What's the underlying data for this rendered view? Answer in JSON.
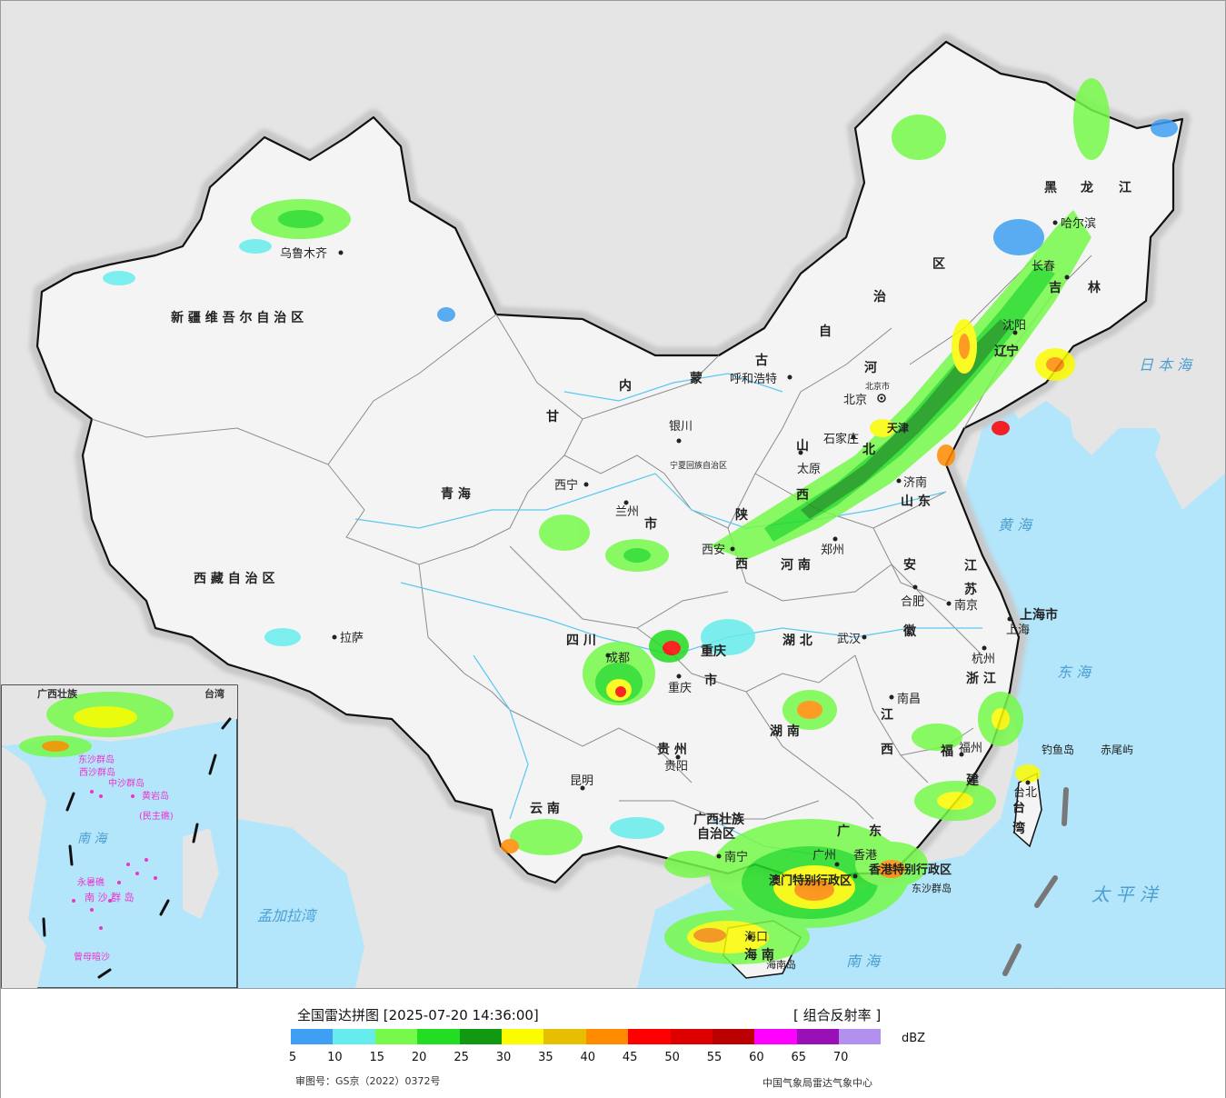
{
  "title": "全国雷达拼图 [2025-07-20 14:36:00]",
  "product": "[ 组合反射率 ]",
  "unit": "dBZ",
  "approval_no": "审图号：GS京（2022）0372号",
  "organization": "中国气象局雷达气象中心",
  "colors": {
    "ocean": "#b3e5fb",
    "foreign_land": "#e5e5e5",
    "china_land": "#f4f4f4",
    "halo": "#c8c8c8",
    "border": "#111111"
  },
  "scale": [
    {
      "value": "5",
      "color": "#3f9ff2"
    },
    {
      "value": "10",
      "color": "#66ecec"
    },
    {
      "value": "15",
      "color": "#76f94a"
    },
    {
      "value": "20",
      "color": "#22dd22"
    },
    {
      "value": "25",
      "color": "#119911"
    },
    {
      "value": "30",
      "color": "#fcfc00"
    },
    {
      "value": "35",
      "color": "#e6c000"
    },
    {
      "value": "40",
      "color": "#ff8c00"
    },
    {
      "value": "45",
      "color": "#ff0000"
    },
    {
      "value": "50",
      "color": "#dd0000"
    },
    {
      "value": "55",
      "color": "#bb0000"
    },
    {
      "value": "60",
      "color": "#ff00ff"
    },
    {
      "value": "65",
      "color": "#9a0fb6"
    },
    {
      "value": "70",
      "color": "#b290ee"
    }
  ],
  "provinces": [
    {
      "name": "新 疆 维 吾 尔 自 治 区"
    },
    {
      "name": "西 藏 自 治 区"
    },
    {
      "name": "青 海"
    },
    {
      "name": "甘"
    },
    {
      "name": "四 川"
    },
    {
      "name": "云 南"
    },
    {
      "name": "贵 州"
    },
    {
      "name": "广西壮族"
    },
    {
      "name": "自治区"
    },
    {
      "name": "湖 南"
    },
    {
      "name": "湖 北"
    },
    {
      "name": "河 南"
    },
    {
      "name": "陕"
    },
    {
      "name": "西"
    },
    {
      "name": "山"
    },
    {
      "name": "西"
    },
    {
      "name": "山 东"
    },
    {
      "name": "河"
    },
    {
      "name": "北"
    },
    {
      "name": "江"
    },
    {
      "name": "西"
    },
    {
      "name": "安"
    },
    {
      "name": "徽"
    },
    {
      "name": "江"
    },
    {
      "name": "苏"
    },
    {
      "name": "浙 江"
    },
    {
      "name": "福"
    },
    {
      "name": "建"
    },
    {
      "name": "广"
    },
    {
      "name": "东"
    },
    {
      "name": "海 南"
    },
    {
      "name": "台"
    },
    {
      "name": "湾"
    },
    {
      "name": "辽"
    },
    {
      "name": "宁"
    },
    {
      "name": "吉"
    },
    {
      "name": "林"
    },
    {
      "name": "黑"
    },
    {
      "name": "龙"
    },
    {
      "name": "江"
    },
    {
      "name": "内"
    },
    {
      "name": "蒙"
    },
    {
      "name": "古"
    },
    {
      "name": "自"
    },
    {
      "name": "治"
    },
    {
      "name": "区"
    },
    {
      "name": "重庆"
    },
    {
      "name": "市"
    },
    {
      "name": "宁夏回族自治区"
    },
    {
      "name": "市"
    },
    {
      "name": "天津"
    }
  ],
  "cities": [
    {
      "name": "乌鲁木齐"
    },
    {
      "name": "拉萨"
    },
    {
      "name": "西宁"
    },
    {
      "name": "兰州"
    },
    {
      "name": "银川"
    },
    {
      "name": "呼和浩特"
    },
    {
      "name": "北京"
    },
    {
      "name": "石家庄"
    },
    {
      "name": "太原"
    },
    {
      "name": "济南"
    },
    {
      "name": "西安"
    },
    {
      "name": "郑州"
    },
    {
      "name": "合肥"
    },
    {
      "name": "南京"
    },
    {
      "name": "上海"
    },
    {
      "name": "杭州"
    },
    {
      "name": "武汉"
    },
    {
      "name": "成都"
    },
    {
      "name": "重庆"
    },
    {
      "name": "贵阳"
    },
    {
      "name": "昆明"
    },
    {
      "name": "南宁"
    },
    {
      "name": "南昌"
    },
    {
      "name": "福州"
    },
    {
      "name": "台北"
    },
    {
      "name": "沈阳"
    },
    {
      "name": "长春"
    },
    {
      "name": "哈尔滨"
    },
    {
      "name": "海口"
    },
    {
      "name": "广州"
    },
    {
      "name": "香港"
    }
  ],
  "special_labels": [
    {
      "name": "北京市"
    },
    {
      "name": "上海市"
    },
    {
      "name": "香港特别行政区"
    },
    {
      "name": "澳门特别行政区"
    },
    {
      "name": "钓鱼岛"
    },
    {
      "name": "赤尾屿"
    },
    {
      "name": "海南岛"
    },
    {
      "name": "东沙群岛"
    }
  ],
  "seas": [
    {
      "name": "日 本 海"
    },
    {
      "name": "黄 海"
    },
    {
      "name": "东 海"
    },
    {
      "name": "太 平 洋"
    },
    {
      "name": "南 海"
    },
    {
      "name": "孟加拉湾"
    }
  ],
  "inset_labels": [
    {
      "name": "南 海"
    },
    {
      "name": "东沙群岛"
    },
    {
      "name": "西沙群岛"
    },
    {
      "name": "中沙群岛"
    },
    {
      "name": "黄岩岛"
    },
    {
      "name": "(民主礁)"
    },
    {
      "name": "永暑礁"
    },
    {
      "name": "南 沙 群 岛"
    },
    {
      "name": "曾母暗沙"
    },
    {
      "name": "广西壮族"
    },
    {
      "name": "台湾"
    }
  ]
}
